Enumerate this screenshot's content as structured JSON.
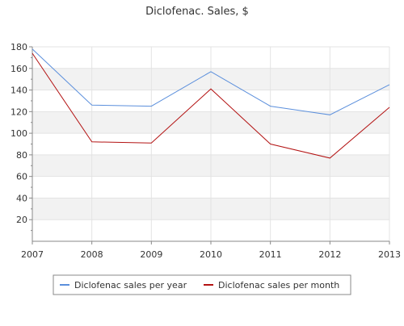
{
  "chart_data": {
    "type": "line",
    "title": "Diclofenac. Sales, $",
    "xlabel": "",
    "ylabel": "",
    "categories": [
      "2007",
      "2008",
      "2009",
      "2010",
      "2011",
      "2012",
      "2013"
    ],
    "series": [
      {
        "name": "Diclofenac sales per year",
        "color": "#5b8fdc",
        "values": [
          178,
          126,
          125,
          157,
          125,
          117,
          145
        ]
      },
      {
        "name": "Diclofenac sales per month",
        "color": "#b31212",
        "values": [
          174,
          92,
          91,
          141,
          90,
          77,
          124
        ]
      }
    ],
    "ylim": [
      0,
      180
    ],
    "y_ticks": [
      20,
      40,
      60,
      80,
      100,
      120,
      140,
      160,
      180
    ],
    "grid": true,
    "legend_position": "bottom"
  }
}
